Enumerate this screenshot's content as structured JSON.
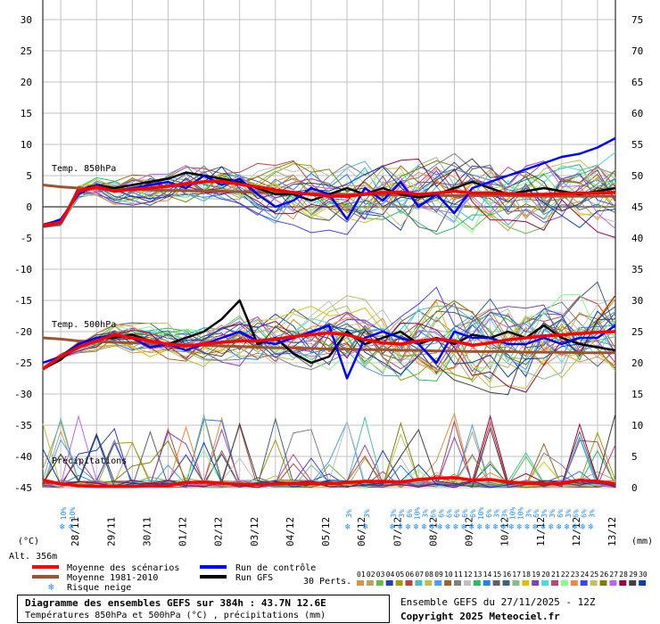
{
  "chart_data": {
    "type": "line",
    "title": "Diagramme des ensembles GEFS sur 384h : 43.7N 12.6E",
    "subtitle": "Températures 850hPa et 500hPa (°C) , précipitations (mm)",
    "run_info": "Ensemble GEFS du 27/11/2025 - 12Z",
    "copyright": "Copyright 2025 Meteociel.fr",
    "altitude": "Alt. 356m",
    "left_unit": "(°C)",
    "right_unit": "(mm)",
    "ylim_left": [
      -45,
      30
    ],
    "ylim_right": [
      0,
      75
    ],
    "left_ticks": [
      "30",
      "25",
      "20",
      "15",
      "10",
      "5",
      "0",
      "-5",
      "-10",
      "-15",
      "-20",
      "-25",
      "-30",
      "-35",
      "-40",
      "-45"
    ],
    "right_ticks": [
      "75",
      "70",
      "65",
      "60",
      "55",
      "50",
      "45",
      "40",
      "35",
      "30",
      "25",
      "20",
      "15",
      "10",
      "5",
      "0"
    ],
    "x_dates": [
      "28/11",
      "29/11",
      "30/11",
      "01/12",
      "02/12",
      "03/12",
      "04/12",
      "05/12",
      "06/12",
      "07/12",
      "08/12",
      "09/12",
      "10/12",
      "11/12",
      "12/12",
      "13/12"
    ],
    "x_hours": [
      0,
      12,
      24,
      36,
      48,
      60,
      72,
      84,
      96,
      108,
      120,
      132,
      144,
      156,
      168,
      180,
      192,
      204,
      216,
      228,
      240,
      252,
      264,
      276,
      288,
      300,
      312,
      324,
      336,
      348,
      360,
      372,
      384
    ],
    "labels": {
      "t850": "Temp. 850hPa",
      "t500": "Temp. 500hPa",
      "precip": "Précipitations"
    },
    "series": [
      {
        "name": "Moyenne des scénarios",
        "color": "#ff0000",
        "t850": [
          -3,
          -2.5,
          2.5,
          3.2,
          2.5,
          2.8,
          3.0,
          3.3,
          3.7,
          4.0,
          4.1,
          3.6,
          3.2,
          2.7,
          2.3,
          2.0,
          1.7,
          1.7,
          2.0,
          2.3,
          2.3,
          2.0,
          2.2,
          2.5,
          2.2,
          2.2,
          2.1,
          2.0,
          2.0,
          2.1,
          2.2,
          2.2,
          2.3
        ],
        "t500": [
          -26,
          -24,
          -22.5,
          -21.5,
          -20.5,
          -21,
          -21.5,
          -22,
          -22.3,
          -22,
          -21.7,
          -21.5,
          -21.5,
          -21.2,
          -20.8,
          -20.5,
          -20.2,
          -20.5,
          -21.3,
          -21.8,
          -22,
          -21.5,
          -21.2,
          -21.5,
          -22.2,
          -21.8,
          -21.3,
          -21,
          -20.7,
          -20.5,
          -20.3,
          -20.1,
          -20
        ],
        "precip": [
          1.2,
          0.6,
          0.3,
          0.2,
          0.2,
          0.2,
          0.3,
          0.3,
          0.8,
          0.9,
          0.7,
          0.5,
          0.5,
          0.6,
          0.7,
          0.6,
          0.6,
          0.8,
          1.0,
          1.0,
          0.9,
          1.3,
          1.5,
          1.6,
          1.2,
          1.3,
          0.9,
          0.7,
          0.6,
          0.7,
          1.2,
          1.0,
          0.6
        ]
      },
      {
        "name": "Moyenne 1981-2010",
        "color": "#a0522d",
        "t850": [
          3.5,
          3.2,
          3.0,
          3.0,
          2.9,
          2.8,
          2.7,
          2.6,
          2.6,
          2.5,
          2.5,
          2.4,
          2.3,
          2.3,
          2.2,
          2.1,
          2.1,
          2.0,
          2.0,
          1.9,
          1.9,
          1.8,
          1.8,
          1.8,
          1.8,
          1.8,
          1.8,
          1.7,
          1.7,
          1.7,
          1.7,
          1.7,
          1.7
        ],
        "t500": [
          -21,
          -21.2,
          -21.5,
          -21.6,
          -21.7,
          -21.8,
          -21.9,
          -22,
          -22.1,
          -22.2,
          -22.3,
          -22.4,
          -22.5,
          -22.6,
          -22.6,
          -22.7,
          -22.8,
          -22.8,
          -22.9,
          -22.9,
          -23,
          -23,
          -23.1,
          -23.1,
          -23.2,
          -23.2,
          -23.2,
          -23.3,
          -23.3,
          -23.3,
          -23.4,
          -23.4,
          -23.4
        ]
      },
      {
        "name": "Run de contrôle",
        "color": "#0000ff",
        "t850": [
          -3,
          -2,
          2,
          3.5,
          2.5,
          3,
          3.5,
          4,
          3,
          5,
          3.5,
          4.5,
          2,
          0,
          1,
          3,
          2,
          -2,
          3,
          1,
          4,
          0,
          2,
          -1,
          3,
          4,
          5,
          6,
          7,
          8,
          8.5,
          9.5,
          11
        ],
        "t500": [
          -25,
          -24,
          -22,
          -21,
          -20.5,
          -21,
          -22.5,
          -22,
          -23,
          -22,
          -21,
          -20,
          -21.5,
          -22,
          -21,
          -20,
          -19,
          -27.5,
          -21,
          -20,
          -21,
          -22,
          -25,
          -20,
          -21,
          -21,
          -22,
          -22,
          -21,
          -22,
          -21,
          -21,
          -19
        ]
      },
      {
        "name": "Run GFS",
        "color": "#000000",
        "t850": [
          -3,
          -2.5,
          2.5,
          3.5,
          3,
          3.5,
          4,
          4.5,
          5.5,
          5,
          4.5,
          4,
          3,
          2,
          2,
          1,
          2,
          3,
          2,
          3,
          2,
          1.5,
          2,
          3,
          4,
          3,
          2,
          2.5,
          3,
          2.5,
          2,
          2.5,
          3
        ],
        "t500": [
          -26,
          -24.5,
          -22,
          -21,
          -21,
          -20.5,
          -21.5,
          -22,
          -21,
          -20,
          -18,
          -15,
          -22,
          -21,
          -23.5,
          -25,
          -24,
          -20,
          -22,
          -21,
          -20,
          -22,
          -21,
          -22,
          -20.5,
          -21,
          -20,
          -21,
          -19,
          -21,
          -22,
          -22.5,
          -23
        ]
      }
    ],
    "snow_risk": [
      {
        "date": "28/11",
        "marks": [
          "10%",
          "10%"
        ]
      },
      {
        "date": "06/12",
        "marks": [
          "3%"
        ]
      },
      {
        "date": "06/12b",
        "marks": [
          "3%"
        ]
      },
      {
        "date": "07/12-13/12",
        "marks": [
          "3%",
          "3%",
          "6%",
          "10%",
          "3%",
          "6%",
          "6%",
          "6%",
          "6%",
          "6%",
          "6%",
          "10%",
          "6%",
          "3%",
          "3%",
          "10%",
          "10%",
          "3%",
          "6%",
          "3%",
          "3%",
          "6%",
          "3%",
          "6%",
          "6%",
          "3%"
        ]
      }
    ],
    "legend": {
      "mean": "Moyenne des scénarios",
      "clim": "Moyenne 1981-2010",
      "snow": "Risque neige",
      "control": "Run de contrôle",
      "gfs": "Run GFS",
      "perts": "30 Perts.",
      "pert_ids": [
        "01",
        "02",
        "03",
        "04",
        "05",
        "06",
        "07",
        "08",
        "09",
        "10",
        "11",
        "12",
        "13",
        "14",
        "15",
        "16",
        "17",
        "18",
        "19",
        "20",
        "21",
        "22",
        "23",
        "24",
        "25",
        "26",
        "27",
        "28",
        "29",
        "30"
      ],
      "pert_colors": [
        "#e09040",
        "#c0a060",
        "#60c040",
        "#2040c0",
        "#a0a000",
        "#c04040",
        "#40c0c0",
        "#c0c040",
        "#40a0ff",
        "#a06020",
        "#808080",
        "#c0c0c0",
        "#20c060",
        "#2080ff",
        "#606060",
        "#406080",
        "#80c080",
        "#e0c000",
        "#8040c0",
        "#40e0e0",
        "#c04080",
        "#80ff80",
        "#ff8040",
        "#4040ff",
        "#c0c060",
        "#808000",
        "#c060ff",
        "#a00040",
        "#404040",
        "#0040c0"
      ]
    }
  }
}
